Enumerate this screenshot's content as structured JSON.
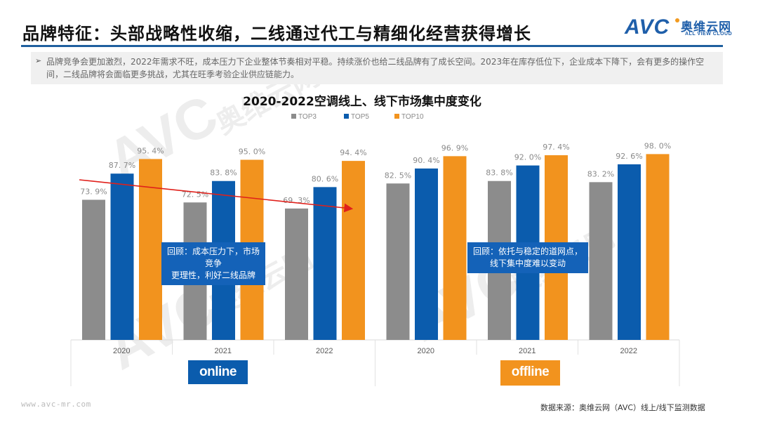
{
  "header": {
    "title": "品牌特征：头部战略性收缩，二线通过代工与精细化经营获得增长",
    "logo": {
      "brand": "AVC",
      "cn_name": "奥维云网",
      "en_name": "ALL VIEW CLOUD"
    }
  },
  "summary": {
    "bullet_icon": "arrow-right-icon",
    "text": "品牌竞争会更加激烈，2022年需求不旺，成本压力下企业整体节奏相对平稳。持续涨价也给二线品牌有了成长空间。2023年在库存低位下，企业成本下降下，会有更多的操作空间，二线品牌将会面临更多挑战，尤其在旺季考验企业供应链能力。"
  },
  "chart_data": {
    "type": "bar",
    "title": "2020-2022空调线上、线下市场集中度变化",
    "xlabel": "",
    "ylabel": "",
    "ylim": [
      0,
      100
    ],
    "grid": false,
    "legend_position": "top-center",
    "groups": [
      {
        "name": "online",
        "categories": [
          "2020",
          "2021",
          "2022"
        ]
      },
      {
        "name": "offline",
        "categories": [
          "2020",
          "2021",
          "2022"
        ]
      }
    ],
    "categories": [
      "2020",
      "2021",
      "2022",
      "2020",
      "2021",
      "2022"
    ],
    "series": [
      {
        "name": "TOP3",
        "color": "#8c8c8c",
        "values": [
          73.9,
          72.5,
          69.3,
          82.5,
          83.8,
          83.2
        ]
      },
      {
        "name": "TOP5",
        "color": "#0b5cad",
        "values": [
          87.7,
          83.8,
          80.6,
          90.4,
          92.0,
          92.6
        ]
      },
      {
        "name": "TOP10",
        "color": "#f2931e",
        "values": [
          95.4,
          95.0,
          94.4,
          96.9,
          97.4,
          98.0
        ]
      }
    ],
    "value_format": "0.0%",
    "annotations": [
      {
        "type": "trend-arrow",
        "color": "#e0201b",
        "description": "TOP3 online downward trend"
      },
      {
        "type": "callout",
        "group": "online",
        "text": "回顾：成本压力下，市场竞争更理性，利好二线品牌"
      },
      {
        "type": "callout",
        "group": "offline",
        "text": "回顾：依托与稳定的道网点，线下集中度难以变动"
      }
    ],
    "group_tags": [
      {
        "label": "online",
        "color": "#0b5cad"
      },
      {
        "label": "offline",
        "color": "#f2931e"
      }
    ]
  },
  "callouts": {
    "online_line1": "回顾：成本压力下，市场竞争",
    "online_line2": "更理性，利好二线品牌",
    "offline_line1": "回顾：依托与稳定的道网点，",
    "offline_line2": "线下集中度难以变动"
  },
  "tags": {
    "online": "online",
    "offline": "offline"
  },
  "footer": {
    "url": "www.avc-mr.com",
    "source": "数据来源：奥维云网（AVC）线上/线下监测数据"
  },
  "watermark": {
    "brand": "AVC",
    "cn": "奥维云网",
    "en": "ALL VIEW CLOUD"
  }
}
